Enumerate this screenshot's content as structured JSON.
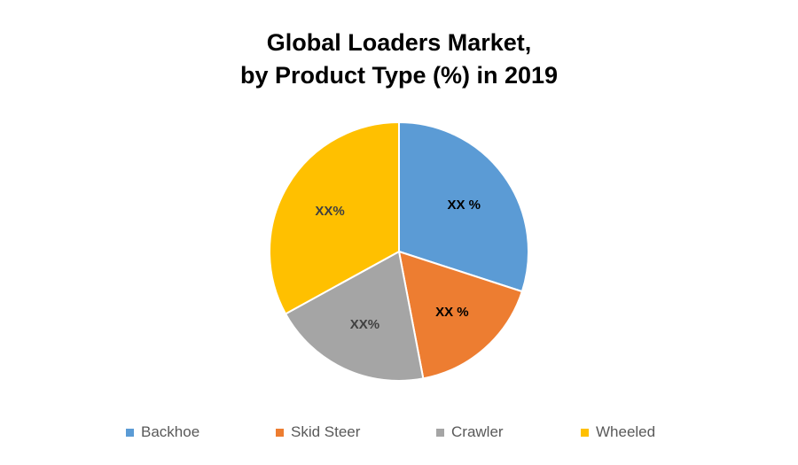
{
  "chart_data": {
    "type": "pie",
    "title": [
      "Global Loaders Market,",
      "by Product Type (%) in 2019"
    ],
    "categories": [
      "Backhoe",
      "Skid Steer",
      "Crawler",
      "Wheeled"
    ],
    "values": [
      30,
      17,
      20,
      33
    ],
    "labels": [
      "XX %",
      "XX %",
      "XX%",
      "XX%"
    ],
    "colors": [
      "#5B9BD5",
      "#ED7D31",
      "#A5A5A5",
      "#FFC000"
    ],
    "label_colors": [
      "#000000",
      "#000000",
      "#404040",
      "#404040"
    ],
    "legend_position": "bottom"
  }
}
